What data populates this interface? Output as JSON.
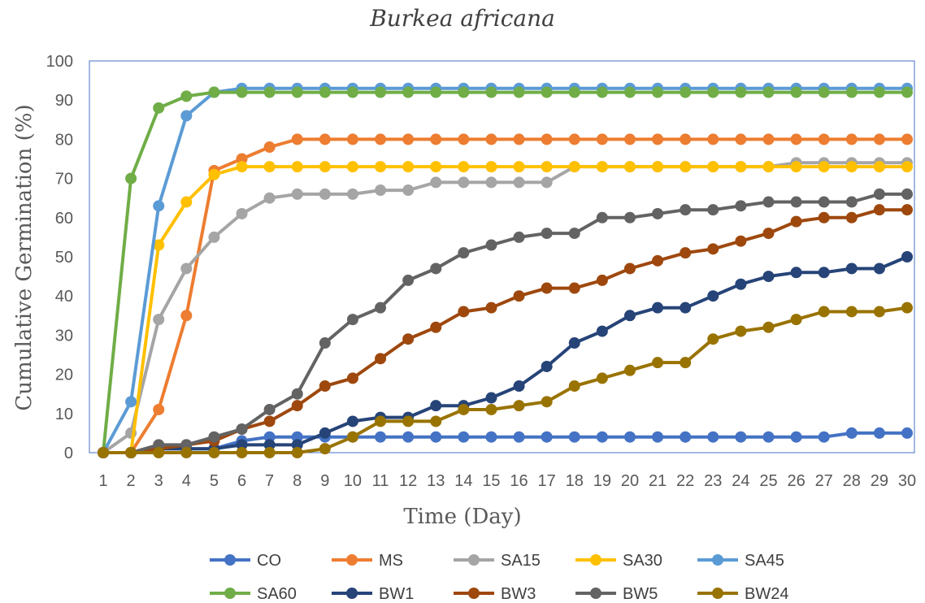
{
  "chart_data": {
    "type": "line",
    "title": "Burkea africana",
    "xlabel": "Time (Day)",
    "ylabel": "Cumulative Germination (%)",
    "ylim": [
      0,
      100
    ],
    "yticks": [
      0,
      10,
      20,
      30,
      40,
      50,
      60,
      70,
      80,
      90,
      100
    ],
    "x": [
      1,
      2,
      3,
      4,
      5,
      6,
      7,
      8,
      9,
      10,
      11,
      12,
      13,
      14,
      15,
      16,
      17,
      18,
      19,
      20,
      21,
      22,
      23,
      24,
      25,
      26,
      27,
      28,
      29,
      30
    ],
    "grid": false,
    "legend_position": "bottom",
    "series": [
      {
        "name": "CO",
        "color": "#4472C4",
        "values": [
          0,
          0,
          1,
          1,
          1,
          3,
          4,
          4,
          4,
          4,
          4,
          4,
          4,
          4,
          4,
          4,
          4,
          4,
          4,
          4,
          4,
          4,
          4,
          4,
          4,
          4,
          4,
          5,
          5,
          5
        ]
      },
      {
        "name": "MS",
        "color": "#ED7D31",
        "values": [
          0,
          0,
          11,
          35,
          72,
          75,
          78,
          80,
          80,
          80,
          80,
          80,
          80,
          80,
          80,
          80,
          80,
          80,
          80,
          80,
          80,
          80,
          80,
          80,
          80,
          80,
          80,
          80,
          80,
          80
        ]
      },
      {
        "name": "SA15",
        "color": "#A5A5A5",
        "values": [
          0,
          5,
          34,
          47,
          55,
          61,
          65,
          66,
          66,
          66,
          67,
          67,
          69,
          69,
          69,
          69,
          69,
          73,
          73,
          73,
          73,
          73,
          73,
          73,
          73,
          74,
          74,
          74,
          74,
          74
        ]
      },
      {
        "name": "SA30",
        "color": "#FFC000",
        "values": [
          0,
          0,
          53,
          64,
          71,
          73,
          73,
          73,
          73,
          73,
          73,
          73,
          73,
          73,
          73,
          73,
          73,
          73,
          73,
          73,
          73,
          73,
          73,
          73,
          73,
          73,
          73,
          73,
          73,
          73
        ]
      },
      {
        "name": "SA45",
        "color": "#5B9BD5",
        "values": [
          0,
          13,
          63,
          86,
          92,
          93,
          93,
          93,
          93,
          93,
          93,
          93,
          93,
          93,
          93,
          93,
          93,
          93,
          93,
          93,
          93,
          93,
          93,
          93,
          93,
          93,
          93,
          93,
          93,
          93
        ]
      },
      {
        "name": "SA60",
        "color": "#70AD47",
        "values": [
          0,
          70,
          88,
          91,
          92,
          92,
          92,
          92,
          92,
          92,
          92,
          92,
          92,
          92,
          92,
          92,
          92,
          92,
          92,
          92,
          92,
          92,
          92,
          92,
          92,
          92,
          92,
          92,
          92,
          92
        ]
      },
      {
        "name": "BW1",
        "color": "#264478",
        "values": [
          0,
          0,
          1,
          1,
          1,
          2,
          2,
          2,
          5,
          8,
          9,
          9,
          12,
          12,
          14,
          17,
          22,
          28,
          31,
          35,
          37,
          37,
          40,
          43,
          45,
          46,
          46,
          47,
          47,
          50
        ]
      },
      {
        "name": "BW3",
        "color": "#9E480E",
        "values": [
          0,
          0,
          1,
          2,
          3,
          6,
          8,
          12,
          17,
          19,
          24,
          29,
          32,
          36,
          37,
          40,
          42,
          42,
          44,
          47,
          49,
          51,
          52,
          54,
          56,
          59,
          60,
          60,
          62,
          62
        ]
      },
      {
        "name": "BW5",
        "color": "#636363",
        "values": [
          0,
          0,
          2,
          2,
          4,
          6,
          11,
          15,
          28,
          34,
          37,
          44,
          47,
          51,
          53,
          55,
          56,
          56,
          60,
          60,
          61,
          62,
          62,
          63,
          64,
          64,
          64,
          64,
          66,
          66
        ]
      },
      {
        "name": "BW24",
        "color": "#997300",
        "values": [
          0,
          0,
          0,
          0,
          0,
          0,
          0,
          0,
          1,
          4,
          8,
          8,
          8,
          11,
          11,
          12,
          13,
          17,
          19,
          21,
          23,
          23,
          29,
          31,
          32,
          34,
          36,
          36,
          36,
          37
        ]
      }
    ]
  }
}
